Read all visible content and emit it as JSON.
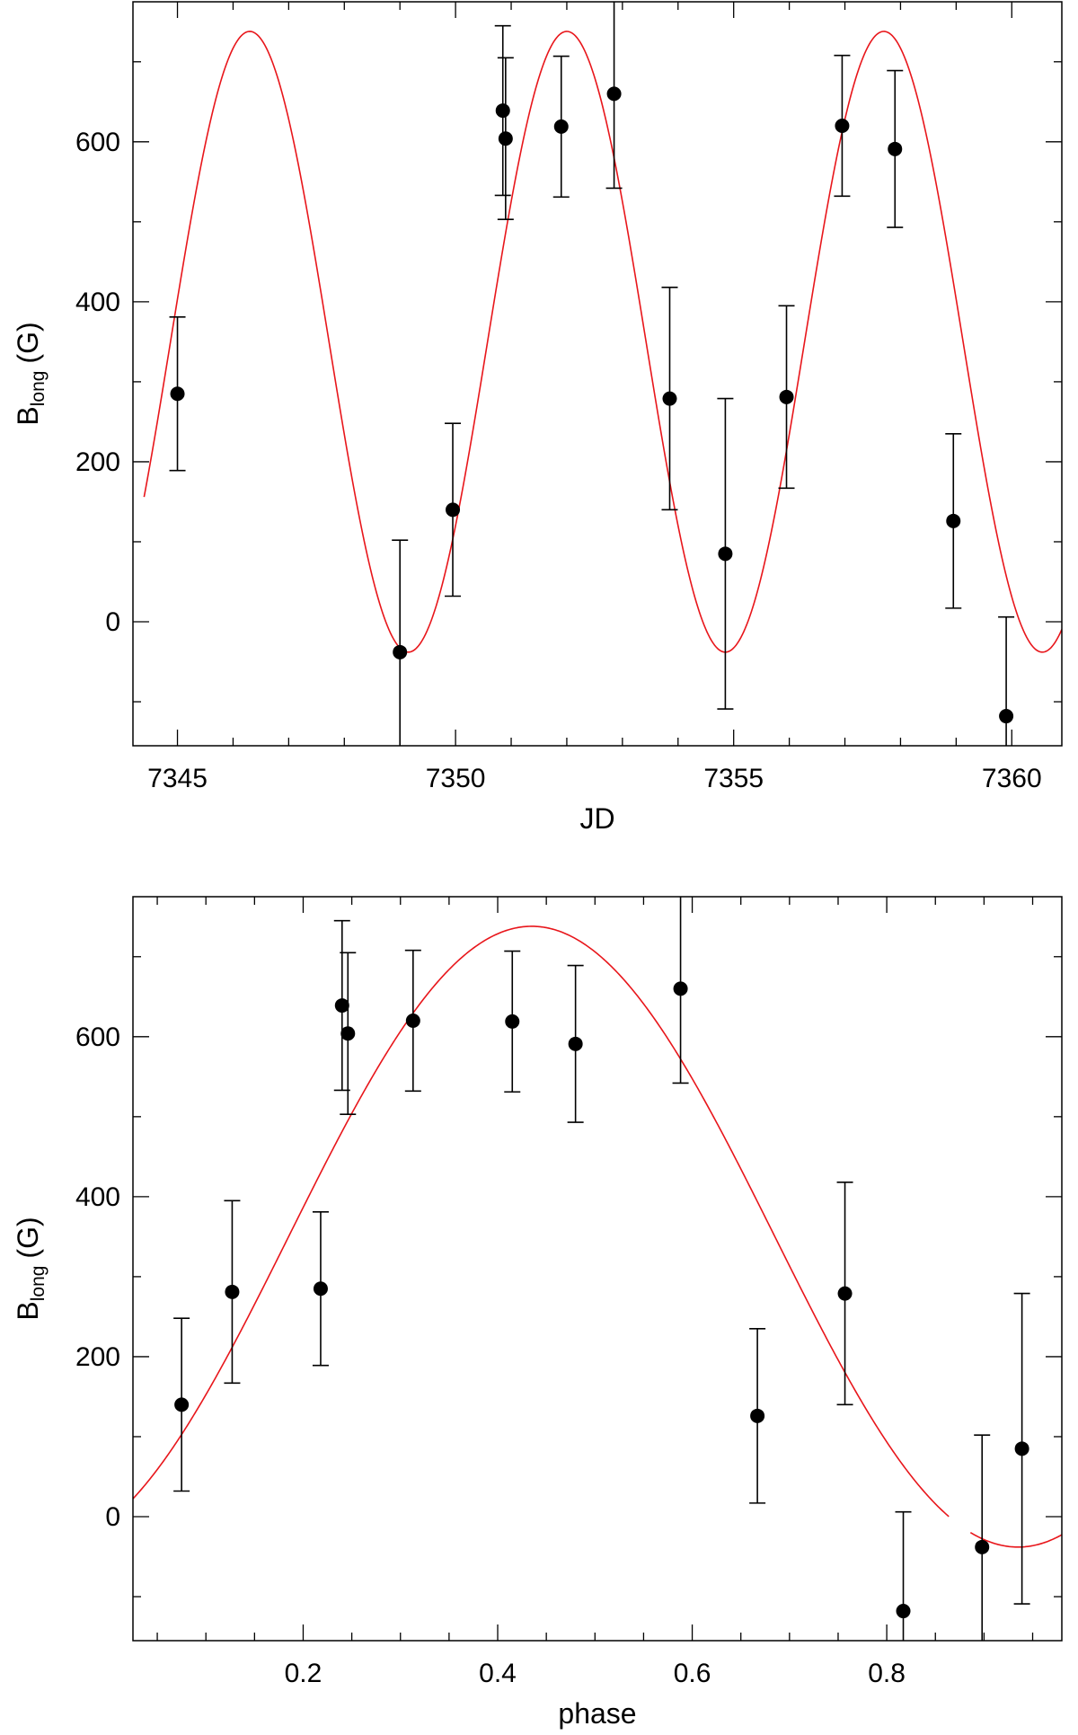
{
  "chart_data": [
    {
      "type": "scatter",
      "xlabel": "JD",
      "ylabel_main": "B",
      "ylabel_sub": "long",
      "ylabel_unit": "(G)",
      "xlim": [
        7344.2,
        7360.9
      ],
      "ylim": [
        -155,
        775
      ],
      "xticks": [
        7345,
        7350,
        7355,
        7360
      ],
      "xticklabels": [
        "7345",
        "7350",
        "7355",
        "7360"
      ],
      "xminor_step": 1,
      "yticks": [
        0,
        200,
        400,
        600
      ],
      "yticklabels": [
        "0",
        "200",
        "400",
        "600"
      ],
      "yminor_step": 100,
      "grid": false,
      "series": [
        {
          "kind": "points_with_errorbars",
          "color": "#000000",
          "points": [
            {
              "x": 7345.0,
              "y": 285,
              "err": 96
            },
            {
              "x": 7349.0,
              "y": -38,
              "err": 140
            },
            {
              "x": 7349.95,
              "y": 140,
              "err": 108
            },
            {
              "x": 7350.85,
              "y": 639,
              "err": 106
            },
            {
              "x": 7350.9,
              "y": 604,
              "err": 101
            },
            {
              "x": 7351.9,
              "y": 619,
              "err": 88
            },
            {
              "x": 7352.85,
              "y": 660,
              "err": 118
            },
            {
              "x": 7353.85,
              "y": 279,
              "err": 139
            },
            {
              "x": 7354.85,
              "y": 85,
              "err": 194
            },
            {
              "x": 7355.95,
              "y": 281,
              "err": 114
            },
            {
              "x": 7356.95,
              "y": 620,
              "err": 88
            },
            {
              "x": 7357.9,
              "y": 591,
              "err": 98
            },
            {
              "x": 7358.95,
              "y": 126,
              "err": 109
            },
            {
              "x": 7359.9,
              "y": -118,
              "err": 124
            }
          ]
        },
        {
          "kind": "sine_fit",
          "color": "#e8161b",
          "mean": 350,
          "amplitude": 388,
          "period": 5.7,
          "peak_at": 7346.3,
          "x_range": [
            7344.4,
            7360.9
          ]
        }
      ]
    },
    {
      "type": "scatter",
      "xlabel": "phase",
      "ylabel_main": "B",
      "ylabel_sub": "long",
      "ylabel_unit": "(G)",
      "xlim": [
        0.025,
        0.98
      ],
      "ylim": [
        -155,
        775
      ],
      "xticks": [
        0.2,
        0.4,
        0.6,
        0.8
      ],
      "xticklabels": [
        "0.2",
        "0.4",
        "0.6",
        "0.8"
      ],
      "xminor_step": 0.05,
      "yticks": [
        0,
        200,
        400,
        600
      ],
      "yticklabels": [
        "0",
        "200",
        "400",
        "600"
      ],
      "yminor_step": 100,
      "grid": false,
      "series": [
        {
          "kind": "points_with_errorbars",
          "color": "#000000",
          "points": [
            {
              "x": 0.075,
              "y": 140,
              "err": 108
            },
            {
              "x": 0.127,
              "y": 281,
              "err": 114
            },
            {
              "x": 0.218,
              "y": 285,
              "err": 96
            },
            {
              "x": 0.24,
              "y": 639,
              "err": 106
            },
            {
              "x": 0.246,
              "y": 604,
              "err": 101
            },
            {
              "x": 0.313,
              "y": 620,
              "err": 88
            },
            {
              "x": 0.415,
              "y": 619,
              "err": 88
            },
            {
              "x": 0.48,
              "y": 591,
              "err": 98
            },
            {
              "x": 0.588,
              "y": 660,
              "err": 118
            },
            {
              "x": 0.667,
              "y": 126,
              "err": 109
            },
            {
              "x": 0.757,
              "y": 279,
              "err": 139
            },
            {
              "x": 0.817,
              "y": -118,
              "err": 124
            },
            {
              "x": 0.898,
              "y": -38,
              "err": 140
            },
            {
              "x": 0.939,
              "y": 85,
              "err": 194
            }
          ]
        },
        {
          "kind": "sine_fit",
          "color": "#e8161b",
          "mean": 350,
          "amplitude": 388,
          "period": 1.0,
          "peak_at": 0.435,
          "x_range": [
            0.025,
            0.98
          ],
          "gap": [
            0.865,
            0.885
          ]
        }
      ]
    }
  ]
}
